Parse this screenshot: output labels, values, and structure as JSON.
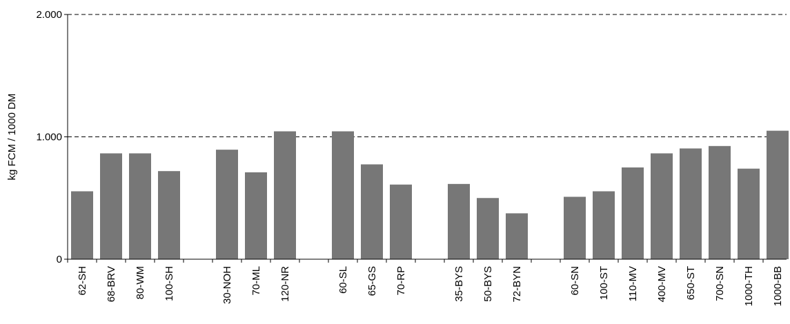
{
  "chart_data": {
    "type": "bar",
    "title": "",
    "xlabel": "",
    "ylabel": "kg FCM / 1000  DM",
    "ylim": [
      0,
      2000
    ],
    "yticks": [
      {
        "value": 0,
        "label": "0"
      },
      {
        "value": 1000,
        "label": "1.000"
      },
      {
        "value": 2000,
        "label": "2.000"
      }
    ],
    "grid": "dashed horizontal at 1000 and 2000",
    "bar_color": "#777777",
    "groups": [
      {
        "categories": [
          "62-SH",
          "68-BRV",
          "80-WM",
          "100-SH"
        ],
        "values": [
          555,
          865,
          865,
          720
        ]
      },
      {
        "categories": [
          "30-NOH",
          "70-ML",
          "120-NR"
        ],
        "values": [
          895,
          710,
          1045
        ]
      },
      {
        "categories": [
          "60-SL",
          "65-GS",
          "70-RP"
        ],
        "values": [
          1045,
          775,
          610
        ]
      },
      {
        "categories": [
          "35-BYS",
          "50-BYS",
          "72-BYN"
        ],
        "values": [
          615,
          500,
          375
        ]
      },
      {
        "categories": [
          "60-SN",
          "100-ST",
          "110-MV",
          "400-MV",
          "650-ST",
          "700-SN",
          "1000-TH",
          "1000-BB"
        ],
        "values": [
          510,
          555,
          750,
          865,
          905,
          925,
          740,
          1050
        ]
      }
    ]
  }
}
